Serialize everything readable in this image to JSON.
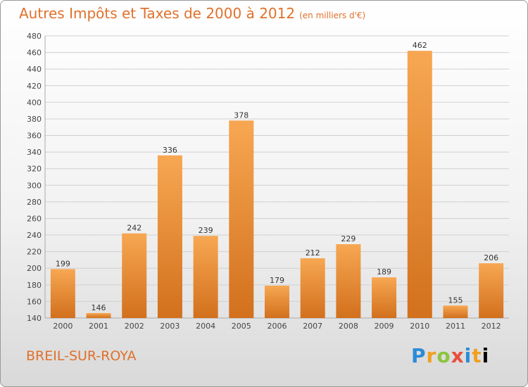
{
  "header": {
    "title": "Autres Impôts et Taxes de 2000 à 2012",
    "unit": "(en milliers d'€)"
  },
  "footer": {
    "commune": "BREIL-SUR-ROYA",
    "logo_letters": [
      "P",
      "r",
      "o",
      "x",
      "i",
      "t",
      "i"
    ]
  },
  "colors": {
    "accent": "#e0712b",
    "bar_light": "#f7a752",
    "bar_dark": "#d2701d"
  },
  "chart_data": {
    "type": "bar",
    "title": "Autres Impôts et Taxes de 2000 à 2012",
    "subtitle": "(en milliers d'€)",
    "categories": [
      "2000",
      "2001",
      "2002",
      "2003",
      "2004",
      "2005",
      "2006",
      "2007",
      "2008",
      "2009",
      "2010",
      "2011",
      "2012"
    ],
    "values": [
      199,
      146,
      242,
      336,
      239,
      378,
      179,
      212,
      229,
      189,
      462,
      155,
      206
    ],
    "ylim": [
      140,
      480
    ],
    "yticks": [
      140,
      160,
      180,
      200,
      220,
      240,
      260,
      280,
      300,
      320,
      340,
      360,
      380,
      400,
      420,
      440,
      460,
      480
    ],
    "grid": true,
    "xlabel": "",
    "ylabel": ""
  }
}
